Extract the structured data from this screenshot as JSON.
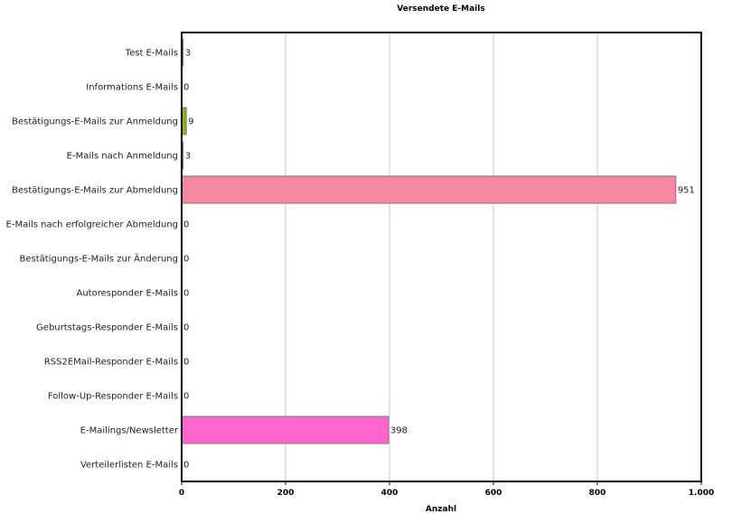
{
  "chart_data": {
    "type": "bar",
    "orientation": "horizontal",
    "title": "Versendete E-Mails",
    "xlabel": "Anzahl",
    "ylabel": "",
    "xlim": [
      0,
      1000
    ],
    "x_ticks": [
      0,
      200,
      400,
      600,
      800,
      1000
    ],
    "x_tick_labels": [
      "0",
      "200",
      "400",
      "600",
      "800",
      "1.000"
    ],
    "grid": "vertical",
    "legend": "none",
    "categories": [
      "Test E-Mails",
      "Informations E-Mails",
      "Bestätigungs-E-Mails zur Anmeldung",
      "E-Mails nach Anmeldung",
      "Bestätigungs-E-Mails zur Abmeldung",
      "E-Mails nach erfolgreicher Abmeldung",
      "Bestätigungs-E-Mails zur Änderung",
      "Autoresponder E-Mails",
      "Geburtstags-Responder E-Mails",
      "RSS2EMail-Responder E-Mails",
      "Follow-Up-Responder E-Mails",
      "E-Mailings/Newsletter",
      "Verteilerlisten E-Mails"
    ],
    "values": [
      3,
      0,
      9,
      3,
      951,
      0,
      0,
      0,
      0,
      0,
      0,
      398,
      0
    ],
    "value_labels": [
      "3",
      "0",
      "9",
      "3",
      "951",
      "0",
      "0",
      "0",
      "0",
      "0",
      "0",
      "398",
      "0"
    ],
    "bar_colors": [
      "#a0a0c8",
      "#8888cc",
      "#8fb020",
      "#b8a0d8",
      "#f7879f",
      "#c0c0c0",
      "#c0c0c0",
      "#c0c0c0",
      "#c0c0c0",
      "#c0c0c0",
      "#c0c0c0",
      "#ff66cc",
      "#c0c0c0"
    ]
  }
}
